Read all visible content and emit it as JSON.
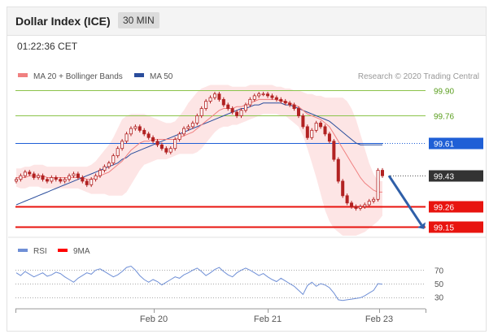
{
  "header": {
    "title": "Dollar Index (ICE)",
    "timeframe": "30 MIN"
  },
  "timestamp": "01:22:36 CET",
  "legend": {
    "bb_label": "MA 20 + Bollinger Bands",
    "ma50_label": "MA 50",
    "credit": "Research © 2020 Trading Central"
  },
  "colors": {
    "bb": "#f08080",
    "ma50": "#2a4d9c",
    "green": "#8bc34a",
    "red": "#e8140f",
    "blue": "#1f5fd6",
    "current": "#333333",
    "candle": "#b22222",
    "band": "#fcdcdc",
    "rsi": "#6f8fd6",
    "rsi_ma": "#ff0000",
    "arrow": "#2f5fa8"
  },
  "chart_data": [
    {
      "type": "candlestick",
      "title": "",
      "x_ticks": [
        "Feb 20",
        "Feb 21",
        "Feb 23"
      ],
      "ylim": [
        99.1,
        99.95
      ],
      "levels": [
        {
          "value": 99.9,
          "label": "99.90",
          "kind": "resistance",
          "color": "#8bc34a"
        },
        {
          "value": 99.76,
          "label": "99.76",
          "kind": "resistance",
          "color": "#8bc34a"
        },
        {
          "value": 99.61,
          "label": "99.61",
          "kind": "pivot",
          "color": "#1f5fd6"
        },
        {
          "value": 99.43,
          "label": "99.43",
          "kind": "current",
          "color": "#333333"
        },
        {
          "value": 99.26,
          "label": "99.26",
          "kind": "support",
          "color": "#e8140f"
        },
        {
          "value": 99.15,
          "label": "99.15",
          "kind": "support",
          "color": "#e8140f"
        }
      ],
      "close": [
        99.41,
        99.43,
        99.45,
        99.44,
        99.42,
        99.43,
        99.41,
        99.4,
        99.42,
        99.41,
        99.4,
        99.41,
        99.43,
        99.44,
        99.42,
        99.4,
        99.38,
        99.41,
        99.43,
        99.46,
        99.48,
        99.5,
        99.54,
        99.58,
        99.62,
        99.66,
        99.69,
        99.7,
        99.68,
        99.66,
        99.64,
        99.62,
        99.6,
        99.58,
        99.56,
        99.58,
        99.63,
        99.66,
        99.69,
        99.7,
        99.72,
        99.76,
        99.8,
        99.84,
        99.86,
        99.88,
        99.85,
        99.82,
        99.8,
        99.78,
        99.76,
        99.79,
        99.82,
        99.85,
        99.87,
        99.88,
        99.88,
        99.87,
        99.86,
        99.85,
        99.84,
        99.83,
        99.82,
        99.8,
        99.76,
        99.7,
        99.64,
        99.68,
        99.72,
        99.7,
        99.66,
        99.62,
        99.52,
        99.4,
        99.32,
        99.28,
        99.26,
        99.25,
        99.26,
        99.27,
        99.29,
        99.3,
        99.46,
        99.43
      ],
      "ma20": [
        99.42,
        99.42,
        99.42,
        99.43,
        99.43,
        99.43,
        99.43,
        99.42,
        99.42,
        99.42,
        99.42,
        99.42,
        99.42,
        99.42,
        99.42,
        99.42,
        99.41,
        99.41,
        99.42,
        99.43,
        99.44,
        99.45,
        99.47,
        99.49,
        99.51,
        99.54,
        99.57,
        99.59,
        99.61,
        99.62,
        99.62,
        99.63,
        99.63,
        99.63,
        99.63,
        99.63,
        99.63,
        99.64,
        99.65,
        99.66,
        99.67,
        99.69,
        99.71,
        99.73,
        99.75,
        99.77,
        99.79,
        99.8,
        99.8,
        99.8,
        99.81,
        99.81,
        99.82,
        99.83,
        99.84,
        99.85,
        99.85,
        99.85,
        99.85,
        99.85,
        99.84,
        99.84,
        99.83,
        99.82,
        99.81,
        99.79,
        99.77,
        99.76,
        99.75,
        99.74,
        99.72,
        99.7,
        99.66,
        99.62,
        99.58,
        99.54,
        99.5,
        99.46,
        99.42,
        99.39,
        99.37,
        99.35,
        99.34,
        99.34
      ],
      "ma50": [
        99.27,
        99.28,
        99.29,
        99.3,
        99.31,
        99.32,
        99.33,
        99.34,
        99.35,
        99.36,
        99.37,
        99.38,
        99.39,
        99.4,
        99.41,
        99.42,
        99.43,
        99.44,
        99.45,
        99.46,
        99.47,
        99.48,
        99.49,
        99.5,
        99.52,
        99.53,
        99.55,
        99.56,
        99.57,
        99.58,
        99.59,
        99.6,
        99.61,
        99.62,
        99.63,
        99.64,
        99.65,
        99.66,
        99.67,
        99.68,
        99.69,
        99.7,
        99.71,
        99.72,
        99.73,
        99.74,
        99.75,
        99.76,
        99.77,
        99.78,
        99.79,
        99.8,
        99.8,
        99.81,
        99.82,
        99.82,
        99.83,
        99.83,
        99.83,
        99.83,
        99.83,
        99.82,
        99.82,
        99.81,
        99.8,
        99.79,
        99.78,
        99.77,
        99.76,
        99.75,
        99.74,
        99.73,
        99.71,
        99.69,
        99.67,
        99.65,
        99.63,
        99.61,
        99.6,
        99.6,
        99.6,
        99.6,
        99.6,
        99.6
      ],
      "bb_upper": [
        99.47,
        99.47,
        99.48,
        99.48,
        99.49,
        99.49,
        99.49,
        99.48,
        99.48,
        99.48,
        99.48,
        99.48,
        99.48,
        99.48,
        99.48,
        99.48,
        99.48,
        99.49,
        99.51,
        99.54,
        99.57,
        99.6,
        99.64,
        99.69,
        99.74,
        99.76,
        99.77,
        99.77,
        99.77,
        99.77,
        99.76,
        99.75,
        99.74,
        99.73,
        99.72,
        99.72,
        99.73,
        99.76,
        99.79,
        99.83,
        99.86,
        99.89,
        99.91,
        99.92,
        99.93,
        99.93,
        99.93,
        99.93,
        99.93,
        99.92,
        99.92,
        99.92,
        99.92,
        99.93,
        99.93,
        99.93,
        99.93,
        99.93,
        99.93,
        99.92,
        99.92,
        99.91,
        99.91,
        99.9,
        99.9,
        99.89,
        99.88,
        99.88,
        99.87,
        99.87,
        99.86,
        99.86,
        99.86,
        99.86,
        99.86,
        99.84,
        99.8,
        99.74,
        99.66,
        99.58,
        99.5,
        99.44,
        99.4,
        99.4
      ],
      "bb_lower": [
        99.37,
        99.36,
        99.36,
        99.37,
        99.37,
        99.37,
        99.36,
        99.36,
        99.36,
        99.36,
        99.36,
        99.36,
        99.36,
        99.36,
        99.36,
        99.35,
        99.34,
        99.33,
        99.33,
        99.33,
        99.33,
        99.32,
        99.32,
        99.32,
        99.32,
        99.34,
        99.38,
        99.42,
        99.46,
        99.49,
        99.5,
        99.51,
        99.52,
        99.52,
        99.52,
        99.53,
        99.54,
        99.55,
        99.55,
        99.55,
        99.55,
        99.56,
        99.58,
        99.61,
        99.64,
        99.67,
        99.69,
        99.7,
        99.7,
        99.71,
        99.71,
        99.72,
        99.73,
        99.74,
        99.75,
        99.76,
        99.77,
        99.77,
        99.77,
        99.77,
        99.76,
        99.76,
        99.74,
        99.72,
        99.7,
        99.65,
        99.58,
        99.5,
        99.42,
        99.33,
        99.24,
        99.18,
        99.14,
        99.12,
        99.1,
        99.1,
        99.1,
        99.1,
        99.11,
        99.12,
        99.14,
        99.16,
        99.18,
        99.21
      ],
      "forecast": {
        "from": 99.43,
        "to": 99.15
      }
    },
    {
      "type": "line",
      "title": "",
      "series": [
        {
          "name": "RSI",
          "color": "#6f8fd6",
          "values": [
            66,
            62,
            68,
            64,
            60,
            63,
            66,
            61,
            63,
            67,
            65,
            60,
            56,
            52,
            58,
            62,
            66,
            64,
            70,
            72,
            68,
            64,
            60,
            63,
            68,
            74,
            76,
            70,
            62,
            56,
            52,
            56,
            53,
            48,
            52,
            56,
            60,
            58,
            63,
            66,
            70,
            73,
            68,
            62,
            66,
            71,
            74,
            68,
            63,
            60,
            66,
            70,
            73,
            70,
            66,
            62,
            65,
            60,
            56,
            53,
            58,
            54,
            50,
            46,
            40,
            34,
            47,
            52,
            46,
            50,
            48,
            44,
            36,
            26,
            25,
            26,
            27,
            28,
            29,
            32,
            36,
            40,
            50,
            49
          ]
        },
        {
          "name": "9MA",
          "color": "#ff0000",
          "values": []
        }
      ],
      "levels": [
        70,
        50,
        30
      ],
      "ylim": [
        15,
        85
      ]
    }
  ],
  "rsi_legend": {
    "rsi_label": "RSI",
    "ma_label": "9MA"
  },
  "axis_ticks": {
    "y_rsi": [
      "70",
      "50",
      "30"
    ]
  }
}
